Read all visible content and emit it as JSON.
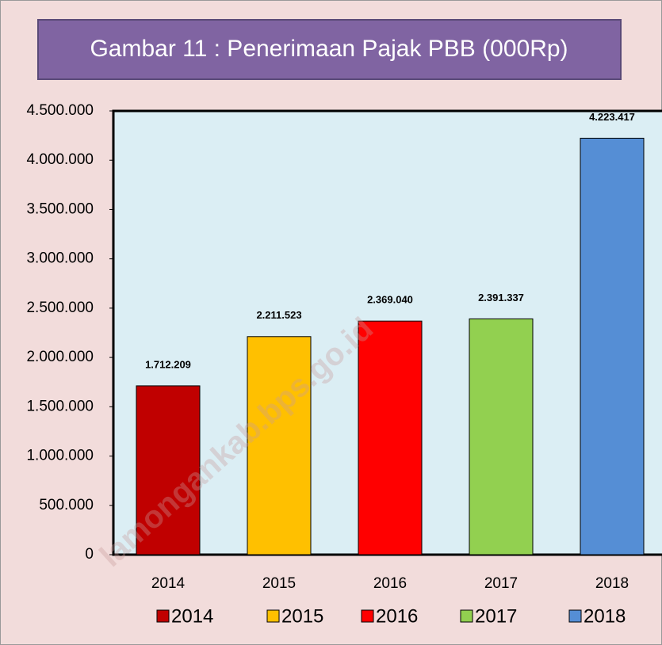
{
  "chart_data": {
    "type": "bar",
    "title": "Gambar 11 : Penerimaan Pajak PBB (000Rp)",
    "categories": [
      "2014",
      "2015",
      "2016",
      "2017",
      "2018"
    ],
    "values": [
      1712209,
      2211523,
      2369040,
      2391337,
      4223417
    ],
    "value_labels": [
      "1.712.209",
      "2.211.523",
      "2.369.040",
      "2.391.337",
      "4.223.417"
    ],
    "colors": [
      "#c00000",
      "#ffc000",
      "#ff0000",
      "#92d050",
      "#558ed5"
    ],
    "ylim": [
      0,
      4500000
    ],
    "yticks": [
      0,
      {
        "value": 500000,
        "label": "500.000"
      },
      {
        "value": 1000000,
        "label": "1.000.000"
      },
      {
        "value": 1500000,
        "label": "1.500.000"
      },
      {
        "value": 2000000,
        "label": "2.000.000"
      },
      {
        "value": 2500000,
        "label": "2.500.000"
      },
      {
        "value": 3000000,
        "label": "3.000.000"
      },
      {
        "value": 3500000,
        "label": "3.500.000"
      },
      {
        "value": 4000000,
        "label": "4.000.000"
      },
      {
        "value": 4500000,
        "label": "4.500.000"
      }
    ],
    "grid": false,
    "legend": "bottom",
    "watermark": "lamongankab.bps.go.id"
  }
}
